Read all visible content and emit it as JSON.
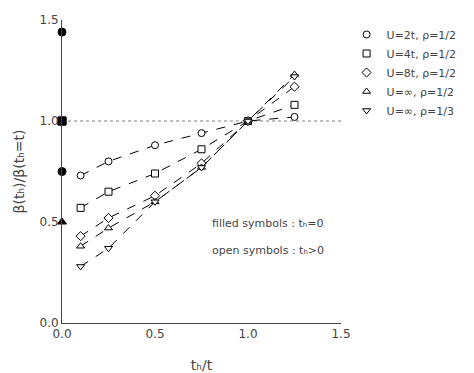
{
  "chart_data": {
    "type": "line",
    "x_label": "tₕ/t",
    "y_label": "β(tₕ)/β(tₕ=t)",
    "xlim": [
      0.0,
      1.5
    ],
    "ylim": [
      0.0,
      1.5
    ],
    "xticks": [
      {
        "value": 0.0,
        "label": "0.0"
      },
      0.5,
      {
        "value": 1.0,
        "label": "1.0"
      },
      1.5
    ],
    "yticks": [
      {
        "value": 0.0,
        "label": "0.0"
      },
      0.5,
      {
        "value": 1.0,
        "label": "1.0"
      },
      1.5
    ],
    "grid": false,
    "legend": "right",
    "color": "#000000",
    "series": [
      {
        "name": "U=2t, ρ=1/2",
        "marker": "circle",
        "line_style": "dash",
        "x": [
          0.1,
          0.25,
          0.5,
          0.75,
          1.0,
          1.25
        ],
        "values": [
          0.73,
          0.8,
          0.88,
          0.94,
          1.0,
          1.02
        ],
        "filled_x": [
          0.0
        ],
        "filled_values": [
          0.75
        ]
      },
      {
        "name": "U=4t, ρ=1/2",
        "marker": "square",
        "line_style": "dash",
        "x": [
          0.1,
          0.25,
          0.5,
          0.75,
          1.0,
          1.25
        ],
        "values": [
          0.57,
          0.65,
          0.74,
          0.86,
          1.0,
          1.08
        ],
        "filled_x": [
          0.0
        ],
        "filled_values": [
          1.0
        ]
      },
      {
        "name": "U=8t, ρ=1/2",
        "marker": "diamond",
        "line_style": "dash",
        "x": [
          0.1,
          0.25,
          0.5,
          0.75,
          1.0,
          1.25
        ],
        "values": [
          0.43,
          0.52,
          0.63,
          0.79,
          1.0,
          1.17
        ],
        "filled_x": [],
        "filled_values": []
      },
      {
        "name": "U=∞, ρ=1/2",
        "marker": "triangle-up",
        "line_style": "dash",
        "x": [
          0.1,
          0.25,
          0.5,
          0.75,
          1.0,
          1.25
        ],
        "values": [
          0.38,
          0.47,
          0.6,
          0.77,
          1.0,
          1.23
        ],
        "filled_x": [
          0.0
        ],
        "filled_values": [
          0.5
        ]
      },
      {
        "name": "U=∞, ρ=1/3",
        "marker": "triangle-down",
        "line_style": "dash",
        "x": [
          0.1,
          0.25,
          0.5,
          0.75,
          1.0,
          1.25
        ],
        "values": [
          0.28,
          0.37,
          0.6,
          0.77,
          1.0,
          1.22
        ],
        "filled_x": [],
        "filled_values": []
      }
    ],
    "extra_points": [
      {
        "marker": "circle",
        "x": 0.0,
        "y": 1.44
      },
      {
        "marker": "square",
        "x": 0.0,
        "y": 1.0
      }
    ],
    "hline": {
      "y": 1.0,
      "color": "#808080",
      "line_style": "dot"
    },
    "annotations": [
      "filled symbols : tₕ=0",
      "open symbols : tₕ>0"
    ]
  }
}
